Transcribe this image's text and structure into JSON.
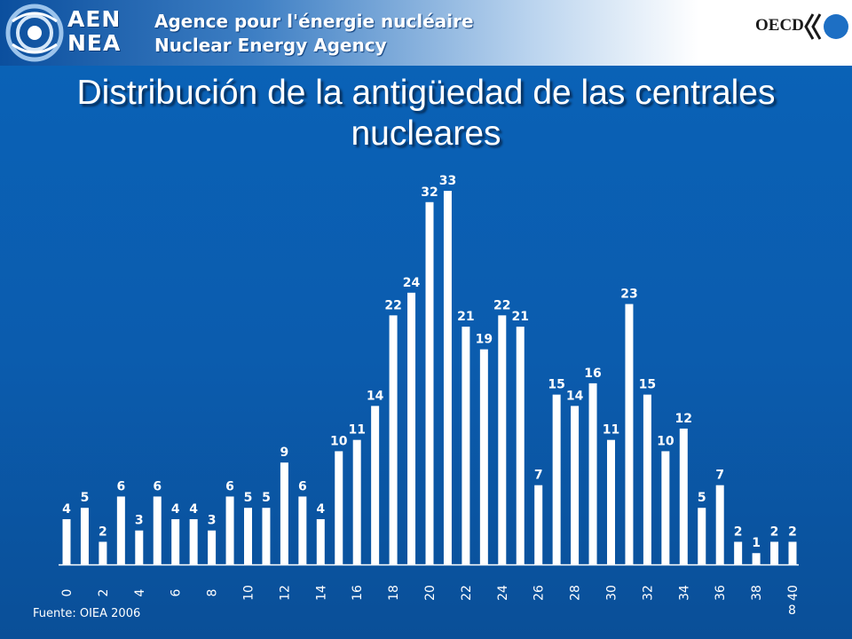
{
  "header": {
    "logo_text_line1": "AEN",
    "logo_text_line2": "NEA",
    "org_name_fr": "Agence pour l'énergie nucléaire",
    "org_name_en": "Nuclear Energy Agency",
    "oecd_label": "OECD",
    "logo_icon": "nea-swirl-logo",
    "oecd_icon": "oecd-logo"
  },
  "slide": {
    "title": "Distribución de la antigüedad de las centrales nucleares",
    "source": "Fuente: OIEA 2006",
    "page_number": "8"
  },
  "colors": {
    "background": "#0b5cae",
    "bar": "#ffffff",
    "text": "#ffffff"
  },
  "chart_data": {
    "type": "bar",
    "x": [
      0,
      1,
      2,
      3,
      4,
      5,
      6,
      7,
      8,
      9,
      10,
      11,
      12,
      13,
      14,
      15,
      16,
      17,
      18,
      19,
      20,
      21,
      22,
      23,
      24,
      25,
      26,
      27,
      28,
      29,
      30,
      31,
      32,
      33,
      34,
      35,
      36,
      37,
      38,
      39,
      40
    ],
    "values": [
      4,
      5,
      2,
      6,
      3,
      6,
      4,
      4,
      3,
      6,
      5,
      5,
      9,
      6,
      4,
      10,
      11,
      14,
      22,
      24,
      32,
      33,
      21,
      19,
      22,
      21,
      7,
      15,
      14,
      16,
      11,
      23,
      15,
      10,
      12,
      5,
      7,
      2,
      1,
      2,
      2
    ],
    "tick_labels": [
      "0",
      "2",
      "4",
      "6",
      "8",
      "10",
      "12",
      "14",
      "16",
      "18",
      "20",
      "22",
      "24",
      "26",
      "28",
      "30",
      "32",
      "34",
      "36",
      "38",
      "40"
    ],
    "tick_values": [
      0,
      2,
      4,
      6,
      8,
      10,
      12,
      14,
      16,
      18,
      20,
      22,
      24,
      26,
      28,
      30,
      32,
      34,
      36,
      38,
      40
    ],
    "data_labels": true,
    "title": "",
    "xlabel": "",
    "ylabel": "",
    "ylim": [
      0,
      33
    ],
    "grid": false,
    "legend": "none"
  }
}
